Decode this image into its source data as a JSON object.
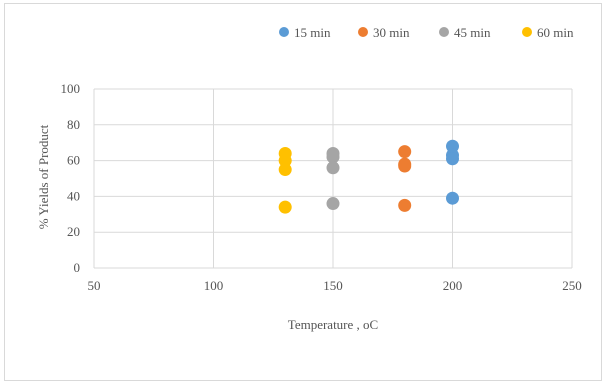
{
  "chart_data": {
    "type": "scatter",
    "title": "",
    "xlabel": "Temperature , oC",
    "ylabel": "% Yields of Product",
    "xlim": [
      50,
      250
    ],
    "ylim": [
      0,
      100
    ],
    "x_ticks": [
      50,
      100,
      150,
      200,
      250
    ],
    "y_ticks": [
      0,
      20,
      40,
      60,
      80,
      100
    ],
    "grid": true,
    "legend_position": "top-right",
    "series": [
      {
        "name": "15 min",
        "color": "#5b9bd5",
        "points": [
          {
            "x": 200,
            "y": 68
          },
          {
            "x": 200,
            "y": 63
          },
          {
            "x": 200,
            "y": 61
          },
          {
            "x": 200,
            "y": 39
          }
        ]
      },
      {
        "name": "30 min",
        "color": "#ed7d31",
        "points": [
          {
            "x": 180,
            "y": 65
          },
          {
            "x": 180,
            "y": 58
          },
          {
            "x": 180,
            "y": 57
          },
          {
            "x": 180,
            "y": 35
          }
        ]
      },
      {
        "name": "45 min",
        "color": "#a5a5a5",
        "points": [
          {
            "x": 150,
            "y": 64
          },
          {
            "x": 150,
            "y": 62
          },
          {
            "x": 150,
            "y": 56
          },
          {
            "x": 150,
            "y": 36
          }
        ]
      },
      {
        "name": "60 min",
        "color": "#ffc000",
        "points": [
          {
            "x": 130,
            "y": 64
          },
          {
            "x": 130,
            "y": 60
          },
          {
            "x": 130,
            "y": 55
          },
          {
            "x": 130,
            "y": 34
          }
        ]
      }
    ]
  }
}
